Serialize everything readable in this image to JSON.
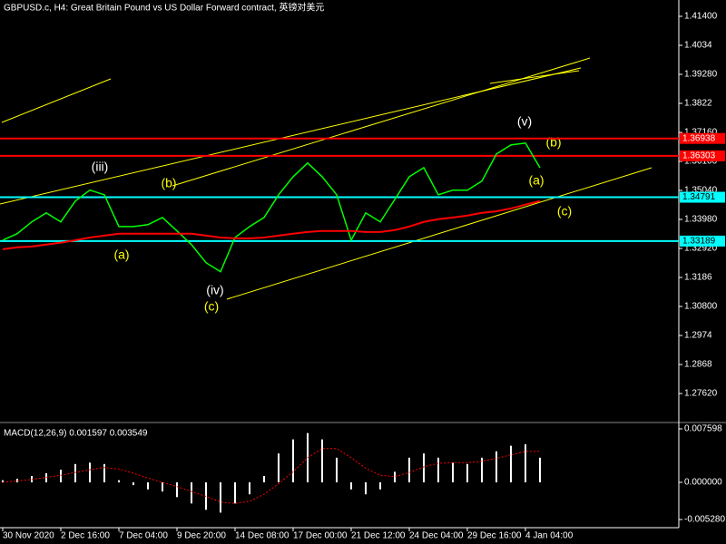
{
  "chart_data": [
    {
      "type": "line",
      "title": "GBPUSD.c, H4:  Great Britain Pound vs US Dollar Forward contract, 英镑对美元",
      "categories": [
        "30 Nov 2020",
        null,
        null,
        null,
        "2 Dec 16:00",
        null,
        null,
        null,
        "7 Dec 04:00",
        null,
        null,
        null,
        "9 Dec 20:00",
        null,
        null,
        null,
        "14 Dec 08:00",
        null,
        null,
        null,
        "17 Dec 00:00",
        null,
        null,
        null,
        "21 Dec 12:00",
        null,
        null,
        null,
        "24 Dec 04:00",
        null,
        null,
        null,
        "29 Dec 16:00",
        null,
        null,
        null,
        "4 Jan 04:00",
        null
      ],
      "series": [
        {
          "color": "#00ff00",
          "values": [
            1.3322,
            1.3346,
            1.3389,
            1.3422,
            1.3389,
            1.3465,
            1.3505,
            1.3488,
            1.3372,
            1.3372,
            1.3379,
            1.3405,
            1.3356,
            1.3306,
            1.324,
            1.3207,
            1.3332,
            1.3372,
            1.3405,
            1.3488,
            1.3554,
            1.3604,
            1.3554,
            1.3488,
            1.3322,
            1.3422,
            1.3389,
            1.3471,
            1.3554,
            1.3587,
            1.3488,
            1.3505,
            1.3505,
            1.3538,
            1.3637,
            1.367,
            1.3677,
            1.3587
          ]
        },
        {
          "color": "#ff0000",
          "values": [
            1.3289,
            1.3296,
            1.3299,
            1.3306,
            1.3313,
            1.3322,
            1.3332,
            1.3339,
            1.3346,
            1.3346,
            1.3346,
            1.3346,
            1.3346,
            1.3346,
            1.3339,
            1.3332,
            1.3329,
            1.3329,
            1.3332,
            1.3339,
            1.3346,
            1.3352,
            1.3356,
            1.3356,
            1.3356,
            1.3352,
            1.3352,
            1.3359,
            1.3372,
            1.3389,
            1.3399,
            1.3405,
            1.3412,
            1.3422,
            1.3428,
            1.3438,
            1.3452,
            1.3465
          ]
        }
      ],
      "ylim": [
        1.26594,
        1.41996
      ],
      "yticks": [
        {
          "value": 1.414,
          "label": "1.41400"
        },
        1.4034,
        {
          "value": 1.3928,
          "label": "1.39280"
        },
        1.3822,
        {
          "value": 1.3716,
          "label": "1.37160"
        },
        {
          "value": 1.361,
          "label": "1.36100"
        },
        {
          "value": 1.3504,
          "label": "1.35040"
        },
        {
          "value": 1.3398,
          "label": "1.33980"
        },
        {
          "value": 1.3292,
          "label": "1.32920"
        },
        1.3186,
        {
          "value": 1.308,
          "label": "1.30800"
        },
        1.2974,
        1.2868,
        {
          "value": 1.2762,
          "label": "1.27620"
        }
      ],
      "levels": [
        {
          "value": 1.36938,
          "color": "#ff0000",
          "text_color": "#ffffff"
        },
        {
          "value": 1.36303,
          "color": "#ff0000",
          "text_color": "#ffffff"
        },
        {
          "value": 1.34791,
          "color": "#00ffff",
          "text_color": "#000000"
        },
        {
          "value": 1.33189,
          "color": "#00ffff",
          "text_color": "#000000"
        }
      ],
      "annotations": [
        {
          "text": "(iii)",
          "color": "#ffffff"
        },
        {
          "text": "(b)",
          "color": "#ffff00"
        },
        {
          "text": "(a)",
          "color": "#ffff00"
        },
        {
          "text": "(iv)",
          "color": "#ffffff"
        },
        {
          "text": "(c)",
          "color": "#ffff00"
        },
        {
          "text": "(v)",
          "color": "#ffffff"
        },
        {
          "text": "(b)",
          "color": "#ffff00"
        },
        {
          "text": "(a)",
          "color": "#ffff00"
        },
        {
          "text": "(c)",
          "color": "#ffff00"
        }
      ]
    },
    {
      "type": "bar",
      "title": "MACD(12,26,9) 0.001597 0.003549",
      "series": [
        {
          "color": "#ffffff",
          "values": [
            0.0003,
            0.0005,
            0.0009,
            0.0013,
            0.0018,
            0.0026,
            0.0028,
            0.0026,
            0.0003,
            -0.0004,
            -0.001,
            -0.0013,
            -0.0021,
            -0.003,
            -0.0039,
            -0.0043,
            -0.003,
            -0.0017,
            0.0009,
            0.0041,
            0.0061,
            0.007,
            0.0061,
            0.0035,
            -0.001,
            -0.0017,
            -0.001,
            0.0015,
            0.0035,
            0.0041,
            0.0035,
            0.0028,
            0.0026,
            0.0035,
            0.0044,
            0.0052,
            0.0054,
            0.0035
          ]
        },
        {
          "color": "#ff0000",
          "style": "dotted",
          "values": [
            0.0,
            0.0002,
            0.0004,
            0.0007,
            0.001,
            0.0014,
            0.0018,
            0.0021,
            0.0019,
            0.0013,
            0.0006,
            0.0,
            -0.0006,
            -0.0013,
            -0.002,
            -0.0028,
            -0.003,
            -0.0027,
            -0.0017,
            -0.0002,
            0.0015,
            0.0035,
            0.0048,
            0.0048,
            0.0035,
            0.002,
            0.001,
            0.0008,
            0.0014,
            0.0022,
            0.0027,
            0.0028,
            0.0028,
            0.003,
            0.0034,
            0.0039,
            0.0044,
            0.0044
          ]
        }
      ],
      "ylim": [
        -0.00644,
        0.00837
      ],
      "yticks": [
        0.007598,
        {
          "value": 0,
          "label": "0.000000"
        },
        {
          "value": -0.00528,
          "label": "-0.005280"
        }
      ]
    }
  ]
}
